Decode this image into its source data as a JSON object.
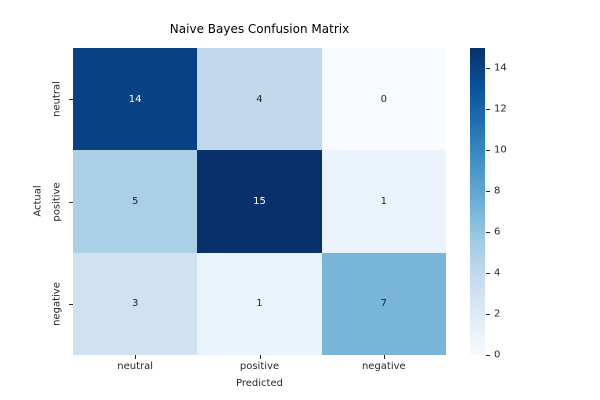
{
  "chart_data": {
    "type": "heatmap",
    "title": "Naive Bayes Confusion Matrix",
    "xlabel": "Predicted",
    "ylabel": "Actual",
    "x_categories": [
      "neutral",
      "positive",
      "negative"
    ],
    "y_categories": [
      "neutral",
      "positive",
      "negative"
    ],
    "values": [
      [
        14,
        4,
        0
      ],
      [
        5,
        15,
        1
      ],
      [
        3,
        1,
        7
      ]
    ],
    "vmin": 0,
    "vmax": 15,
    "colormap": "Blues",
    "colormap_stops": [
      "#f7fbff",
      "#deebf7",
      "#c6dbef",
      "#9ecae1",
      "#6baed6",
      "#4292c6",
      "#2171b5",
      "#08519c",
      "#08306b"
    ],
    "annotation_color_dark": "#262626",
    "annotation_color_light": "#ffffff",
    "colorbar_ticks": [
      0,
      2,
      4,
      6,
      8,
      10,
      12,
      14
    ],
    "colorbar_position": "right",
    "grid": false,
    "background_color": "#ffffff"
  }
}
